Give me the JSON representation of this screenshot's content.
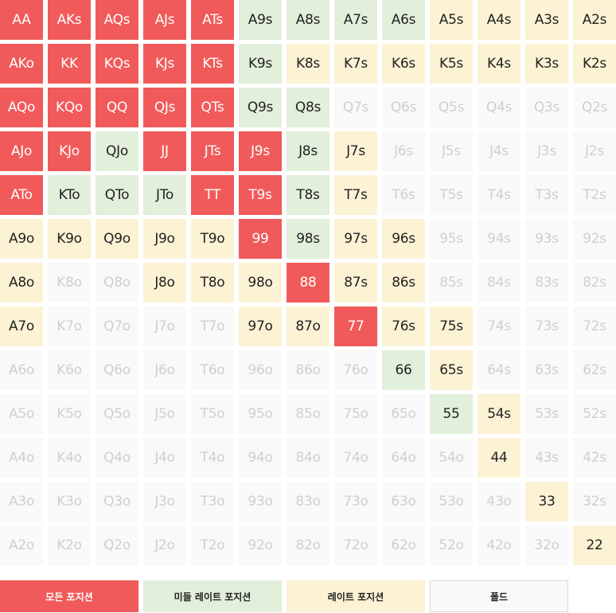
{
  "categories": {
    "all": {
      "label": "모든 포지션",
      "color": "#f15a5a"
    },
    "mlp": {
      "label": "미들 레이트 포지션",
      "color": "#e2efdb"
    },
    "late": {
      "label": "레이트 포지션",
      "color": "#fcf2d4"
    },
    "fold": {
      "label": "폴드",
      "color": "#f9f9f9"
    }
  },
  "grid": [
    [
      [
        "AA",
        "all"
      ],
      [
        "AKs",
        "all"
      ],
      [
        "AQs",
        "all"
      ],
      [
        "AJs",
        "all"
      ],
      [
        "ATs",
        "all"
      ],
      [
        "A9s",
        "mlp"
      ],
      [
        "A8s",
        "mlp"
      ],
      [
        "A7s",
        "mlp"
      ],
      [
        "A6s",
        "mlp"
      ],
      [
        "A5s",
        "late"
      ],
      [
        "A4s",
        "late"
      ],
      [
        "A3s",
        "late"
      ],
      [
        "A2s",
        "late"
      ]
    ],
    [
      [
        "AKo",
        "all"
      ],
      [
        "KK",
        "all"
      ],
      [
        "KQs",
        "all"
      ],
      [
        "KJs",
        "all"
      ],
      [
        "KTs",
        "all"
      ],
      [
        "K9s",
        "mlp"
      ],
      [
        "K8s",
        "late"
      ],
      [
        "K7s",
        "late"
      ],
      [
        "K6s",
        "late"
      ],
      [
        "K5s",
        "late"
      ],
      [
        "K4s",
        "late"
      ],
      [
        "K3s",
        "late"
      ],
      [
        "K2s",
        "late"
      ]
    ],
    [
      [
        "AQo",
        "all"
      ],
      [
        "KQo",
        "all"
      ],
      [
        "QQ",
        "all"
      ],
      [
        "QJs",
        "all"
      ],
      [
        "QTs",
        "all"
      ],
      [
        "Q9s",
        "mlp"
      ],
      [
        "Q8s",
        "mlp"
      ],
      [
        "Q7s",
        "fold"
      ],
      [
        "Q6s",
        "fold"
      ],
      [
        "Q5s",
        "fold"
      ],
      [
        "Q4s",
        "fold"
      ],
      [
        "Q3s",
        "fold"
      ],
      [
        "Q2s",
        "fold"
      ]
    ],
    [
      [
        "AJo",
        "all"
      ],
      [
        "KJo",
        "all"
      ],
      [
        "QJo",
        "mlp"
      ],
      [
        "JJ",
        "all"
      ],
      [
        "JTs",
        "all"
      ],
      [
        "J9s",
        "all"
      ],
      [
        "J8s",
        "mlp"
      ],
      [
        "J7s",
        "late"
      ],
      [
        "J6s",
        "fold"
      ],
      [
        "J5s",
        "fold"
      ],
      [
        "J4s",
        "fold"
      ],
      [
        "J3s",
        "fold"
      ],
      [
        "J2s",
        "fold"
      ]
    ],
    [
      [
        "ATo",
        "all"
      ],
      [
        "KTo",
        "mlp"
      ],
      [
        "QTo",
        "mlp"
      ],
      [
        "JTo",
        "mlp"
      ],
      [
        "TT",
        "all"
      ],
      [
        "T9s",
        "all"
      ],
      [
        "T8s",
        "mlp"
      ],
      [
        "T7s",
        "late"
      ],
      [
        "T6s",
        "fold"
      ],
      [
        "T5s",
        "fold"
      ],
      [
        "T4s",
        "fold"
      ],
      [
        "T3s",
        "fold"
      ],
      [
        "T2s",
        "fold"
      ]
    ],
    [
      [
        "A9o",
        "late"
      ],
      [
        "K9o",
        "late"
      ],
      [
        "Q9o",
        "late"
      ],
      [
        "J9o",
        "late"
      ],
      [
        "T9o",
        "late"
      ],
      [
        "99",
        "all"
      ],
      [
        "98s",
        "mlp"
      ],
      [
        "97s",
        "late"
      ],
      [
        "96s",
        "late"
      ],
      [
        "95s",
        "fold"
      ],
      [
        "94s",
        "fold"
      ],
      [
        "93s",
        "fold"
      ],
      [
        "92s",
        "fold"
      ]
    ],
    [
      [
        "A8o",
        "late"
      ],
      [
        "K8o",
        "fold"
      ],
      [
        "Q8o",
        "fold"
      ],
      [
        "J8o",
        "late"
      ],
      [
        "T8o",
        "late"
      ],
      [
        "98o",
        "late"
      ],
      [
        "88",
        "all"
      ],
      [
        "87s",
        "late"
      ],
      [
        "86s",
        "late"
      ],
      [
        "85s",
        "fold"
      ],
      [
        "84s",
        "fold"
      ],
      [
        "83s",
        "fold"
      ],
      [
        "82s",
        "fold"
      ]
    ],
    [
      [
        "A7o",
        "late"
      ],
      [
        "K7o",
        "fold"
      ],
      [
        "Q7o",
        "fold"
      ],
      [
        "J7o",
        "fold"
      ],
      [
        "T7o",
        "fold"
      ],
      [
        "97o",
        "late"
      ],
      [
        "87o",
        "late"
      ],
      [
        "77",
        "all"
      ],
      [
        "76s",
        "late"
      ],
      [
        "75s",
        "late"
      ],
      [
        "74s",
        "fold"
      ],
      [
        "73s",
        "fold"
      ],
      [
        "72s",
        "fold"
      ]
    ],
    [
      [
        "A6o",
        "fold"
      ],
      [
        "K6o",
        "fold"
      ],
      [
        "Q6o",
        "fold"
      ],
      [
        "J6o",
        "fold"
      ],
      [
        "T6o",
        "fold"
      ],
      [
        "96o",
        "fold"
      ],
      [
        "86o",
        "fold"
      ],
      [
        "76o",
        "fold"
      ],
      [
        "66",
        "mlp"
      ],
      [
        "65s",
        "late"
      ],
      [
        "64s",
        "fold"
      ],
      [
        "63s",
        "fold"
      ],
      [
        "62s",
        "fold"
      ]
    ],
    [
      [
        "A5o",
        "fold"
      ],
      [
        "K5o",
        "fold"
      ],
      [
        "Q5o",
        "fold"
      ],
      [
        "J5o",
        "fold"
      ],
      [
        "T5o",
        "fold"
      ],
      [
        "95o",
        "fold"
      ],
      [
        "85o",
        "fold"
      ],
      [
        "75o",
        "fold"
      ],
      [
        "65o",
        "fold"
      ],
      [
        "55",
        "mlp"
      ],
      [
        "54s",
        "late"
      ],
      [
        "53s",
        "fold"
      ],
      [
        "52s",
        "fold"
      ]
    ],
    [
      [
        "A4o",
        "fold"
      ],
      [
        "K4o",
        "fold"
      ],
      [
        "Q4o",
        "fold"
      ],
      [
        "J4o",
        "fold"
      ],
      [
        "T4o",
        "fold"
      ],
      [
        "94o",
        "fold"
      ],
      [
        "84o",
        "fold"
      ],
      [
        "74o",
        "fold"
      ],
      [
        "64o",
        "fold"
      ],
      [
        "54o",
        "fold"
      ],
      [
        "44",
        "late"
      ],
      [
        "43s",
        "fold"
      ],
      [
        "42s",
        "fold"
      ]
    ],
    [
      [
        "A3o",
        "fold"
      ],
      [
        "K3o",
        "fold"
      ],
      [
        "Q3o",
        "fold"
      ],
      [
        "J3o",
        "fold"
      ],
      [
        "T3o",
        "fold"
      ],
      [
        "93o",
        "fold"
      ],
      [
        "83o",
        "fold"
      ],
      [
        "73o",
        "fold"
      ],
      [
        "63o",
        "fold"
      ],
      [
        "53o",
        "fold"
      ],
      [
        "43o",
        "fold"
      ],
      [
        "33",
        "late"
      ],
      [
        "32s",
        "fold"
      ]
    ],
    [
      [
        "A2o",
        "fold"
      ],
      [
        "K2o",
        "fold"
      ],
      [
        "Q2o",
        "fold"
      ],
      [
        "J2o",
        "fold"
      ],
      [
        "T2o",
        "fold"
      ],
      [
        "92o",
        "fold"
      ],
      [
        "82o",
        "fold"
      ],
      [
        "72o",
        "fold"
      ],
      [
        "62o",
        "fold"
      ],
      [
        "52o",
        "fold"
      ],
      [
        "42o",
        "fold"
      ],
      [
        "32o",
        "fold"
      ],
      [
        "22",
        "late"
      ]
    ]
  ]
}
